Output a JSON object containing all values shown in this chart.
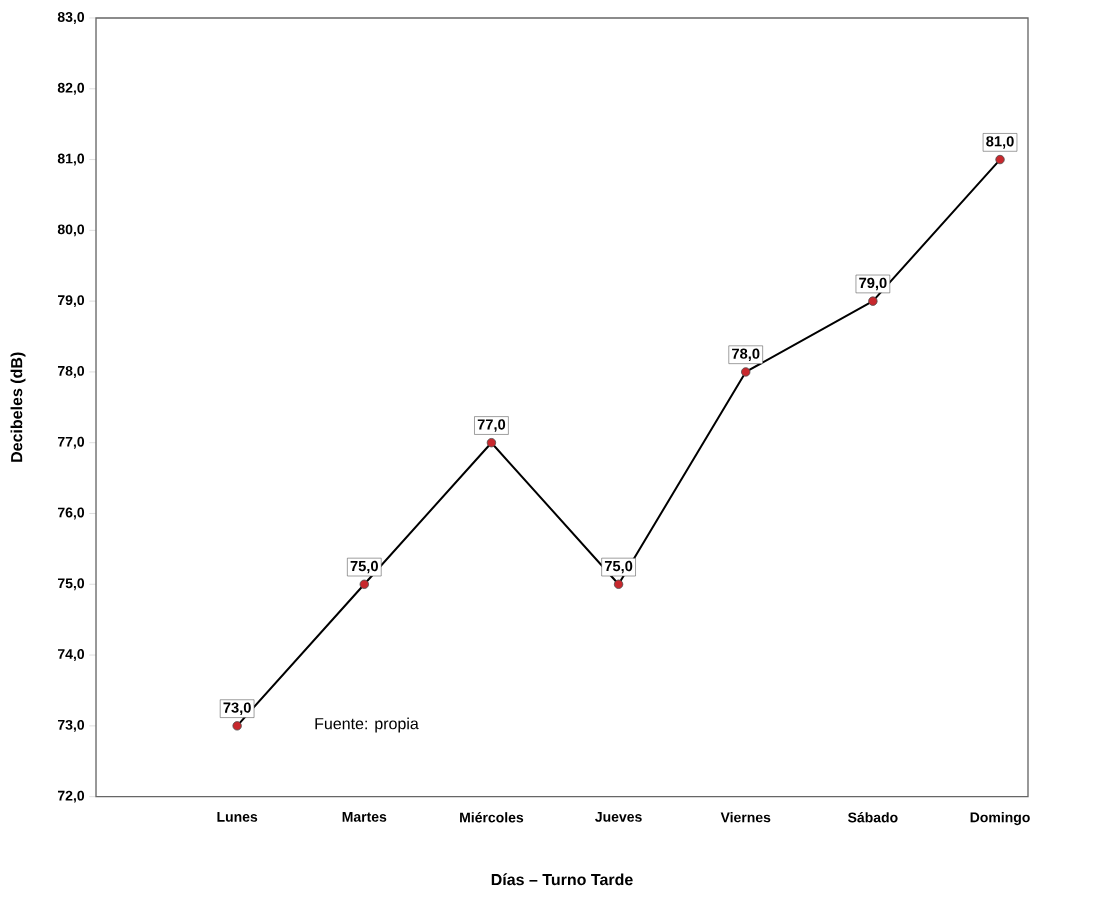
{
  "chart_data": {
    "type": "line",
    "xlabel": "Días – Turno Tarde",
    "ylabel": "Decibeles (dB)",
    "categories": [
      "Lunes",
      "Martes",
      "Miércoles",
      "Jueves",
      "Viernes",
      "Sábado",
      "Domingo"
    ],
    "series": [
      {
        "color": "#c8282d",
        "values": [
          73,
          75,
          77,
          75,
          78,
          79,
          81
        ],
        "value_labels": [
          "73,0",
          "75,0",
          "77,0",
          "75,0",
          "78,0",
          "79,0",
          "81,0"
        ]
      }
    ],
    "ylim": [
      72,
      83
    ],
    "yticks": [
      {
        "value": 72,
        "label": "72,0"
      },
      {
        "value": 73,
        "label": "73,0"
      },
      {
        "value": 74,
        "label": "74,0"
      },
      {
        "value": 75,
        "label": "75,0"
      },
      {
        "value": 76,
        "label": "76,0"
      },
      {
        "value": 77,
        "label": "77,0"
      },
      {
        "value": 78,
        "label": "78,0"
      },
      {
        "value": 79,
        "label": "79,0"
      },
      {
        "value": 80,
        "label": "80,0"
      },
      {
        "value": 81,
        "label": "81,0"
      },
      {
        "value": 82,
        "label": "82,0"
      },
      {
        "value": 83,
        "label": "83,0"
      }
    ],
    "marker": "circle",
    "line_style": "solid",
    "grid": false,
    "annotations": [
      "Fuente: propia"
    ]
  }
}
